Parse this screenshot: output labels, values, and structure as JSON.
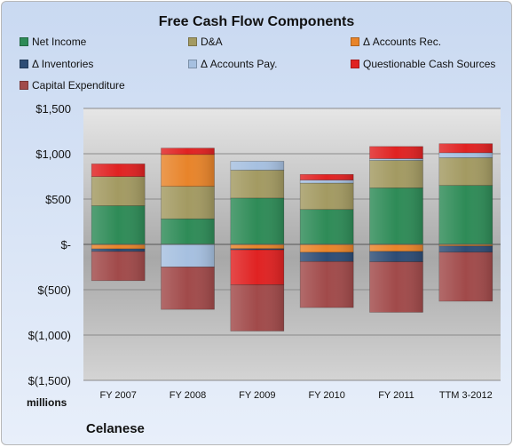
{
  "chart_data": {
    "type": "bar",
    "stacked": true,
    "title": "Free Cash Flow Components",
    "categories": [
      "FY 2007",
      "FY 2008",
      "FY 2009",
      "FY 2010",
      "FY 2011",
      "TTM 3-2012"
    ],
    "ylim": [
      -1500,
      1500
    ],
    "yticks": [
      1500,
      1000,
      500,
      0,
      -500,
      -1000,
      -1500
    ],
    "ytick_labels": [
      "$1,500",
      "$1,000",
      "$500",
      "$-",
      "$(500)",
      "$(1,000)",
      "$(1,500)"
    ],
    "unit_label": "millions",
    "grid": true,
    "legend_position": "top",
    "series": [
      {
        "name": "Net Income",
        "color": "#2e8b57",
        "values": [
          426,
          282,
          511,
          385,
          623,
          650
        ]
      },
      {
        "name": "D&A",
        "color": "#a39a62",
        "values": [
          322,
          358,
          308,
          291,
          303,
          306
        ]
      },
      {
        "name": "Δ Accounts Rec.",
        "color": "#e8842a",
        "values": [
          -50,
          352,
          -48,
          -88,
          -78,
          -18
        ]
      },
      {
        "name": "Δ Inventories",
        "color": "#2d4c75",
        "values": [
          -28,
          0,
          -12,
          -101,
          -114,
          -68
        ]
      },
      {
        "name": "Δ Accounts Pay.",
        "color": "#a6c0e0",
        "values": [
          0,
          -249,
          98,
          34,
          20,
          55
        ]
      },
      {
        "name": "Questionable Cash Sources",
        "color": "#e02222",
        "values": [
          140,
          70,
          -385,
          62,
          134,
          100
        ]
      },
      {
        "name": "Capital Expenditure",
        "color": "#a14a4a",
        "values": [
          -322,
          -468,
          -511,
          -508,
          -557,
          -541
        ]
      }
    ]
  },
  "unit_label": "millions",
  "company": "Celanese"
}
